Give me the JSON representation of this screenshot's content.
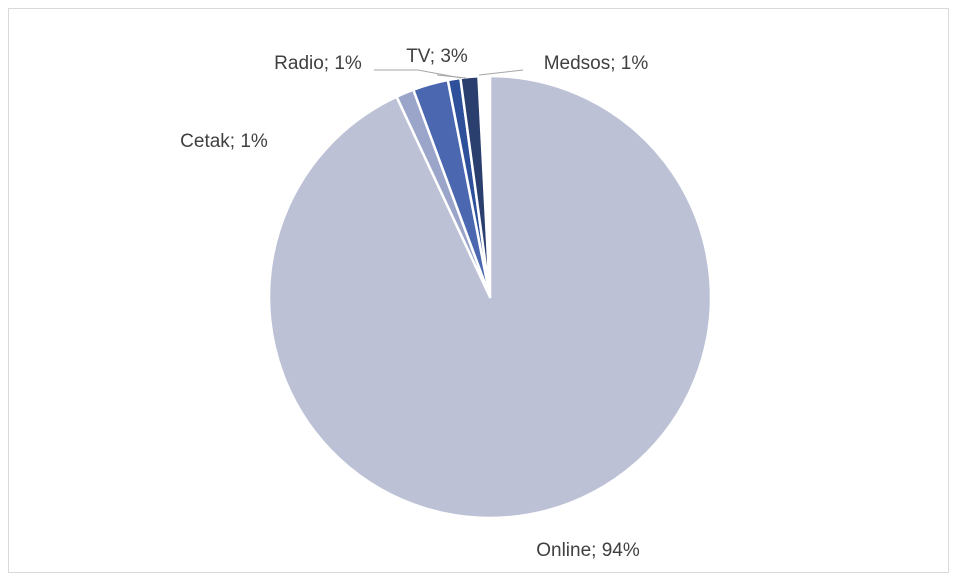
{
  "chart_data": {
    "type": "pie",
    "title": "",
    "legend": "none",
    "start_angle_deg": 0,
    "direction": "clockwise",
    "slices": [
      {
        "label": "Online; 94%",
        "category": "Online",
        "value": 94,
        "color": "#bcc1d6"
      },
      {
        "label": "Cetak; 1%",
        "category": "Cetak",
        "value": 1,
        "color": "#9aa5c9"
      },
      {
        "label": "Radio; 1%",
        "category": "Radio",
        "value": 1,
        "color": "#4a67b0"
      },
      {
        "label": "TV; 3%",
        "category": "TV",
        "value": 3,
        "color": "#2e4f99"
      },
      {
        "label": "Medsos; 1%",
        "category": "Medsos",
        "value": 1,
        "color": "#2b3f6e"
      }
    ]
  }
}
